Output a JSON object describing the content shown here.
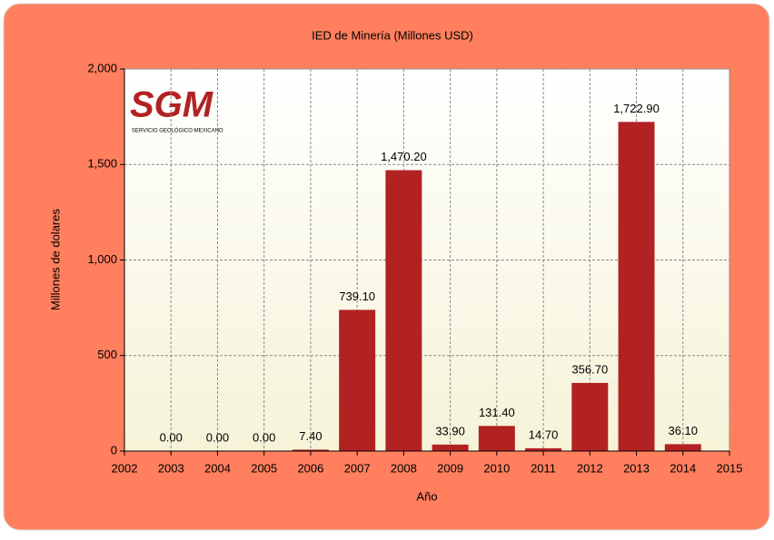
{
  "chart_data": {
    "type": "bar",
    "title": "IED de Minería (Millones USD)",
    "xlabel": "Año",
    "ylabel": "Millones de dolares",
    "logo": {
      "text": "SGM",
      "subtitle": "SERVICIO GEOLÓGICO MEXICANO"
    },
    "x": [
      2003,
      2004,
      2005,
      2006,
      2007,
      2008,
      2009,
      2010,
      2011,
      2012,
      2013,
      2014
    ],
    "values": [
      0,
      0,
      0,
      7.4,
      739.1,
      1470.2,
      33.9,
      131.4,
      14.7,
      356.7,
      1722.9,
      36.1
    ],
    "value_labels": [
      "0.00",
      "0.00",
      "0.00",
      "7.40",
      "739.10",
      "1,470.20",
      "33.90",
      "131.40",
      "14.70",
      "356.70",
      "1,722.90",
      "36.10"
    ],
    "color": "#b22222",
    "xlim": [
      2002,
      2015
    ],
    "xticks": [
      2002,
      2003,
      2004,
      2005,
      2006,
      2007,
      2008,
      2009,
      2010,
      2011,
      2012,
      2013,
      2014,
      2015
    ],
    "ylim": [
      0,
      2000
    ],
    "yticks": [
      0,
      500,
      {
        "value": 1000,
        "label": "1,000"
      },
      {
        "value": 1500,
        "label": "1,500"
      },
      {
        "value": 2000,
        "label": "2,000"
      }
    ],
    "grid": true
  }
}
